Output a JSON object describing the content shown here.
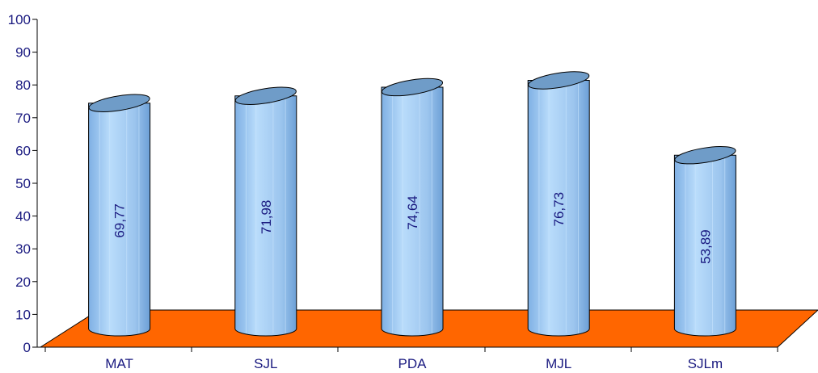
{
  "chart_data": {
    "type": "bar",
    "style": "3d-cylinder",
    "categories": [
      "MAT",
      "SJL",
      "PDA",
      "MJL",
      "SJLm"
    ],
    "values": [
      69.77,
      71.98,
      74.64,
      76.73,
      53.89
    ],
    "data_labels": [
      "69,77",
      "71,98",
      "74,64",
      "76,73",
      "53,89"
    ],
    "yticks": [
      "0",
      "10",
      "20",
      "30",
      "40",
      "50",
      "60",
      "70",
      "80",
      "90",
      "100"
    ],
    "ylim": [
      0,
      100
    ],
    "title": "",
    "xlabel": "",
    "ylabel": "",
    "grid": false,
    "legend": "none",
    "colors": {
      "floor": "#ff6600",
      "cylinder_body": "#9fc8f0",
      "cylinder_top": "#6f9cc8",
      "axis": "#000000",
      "text": "#1a1a80"
    }
  }
}
